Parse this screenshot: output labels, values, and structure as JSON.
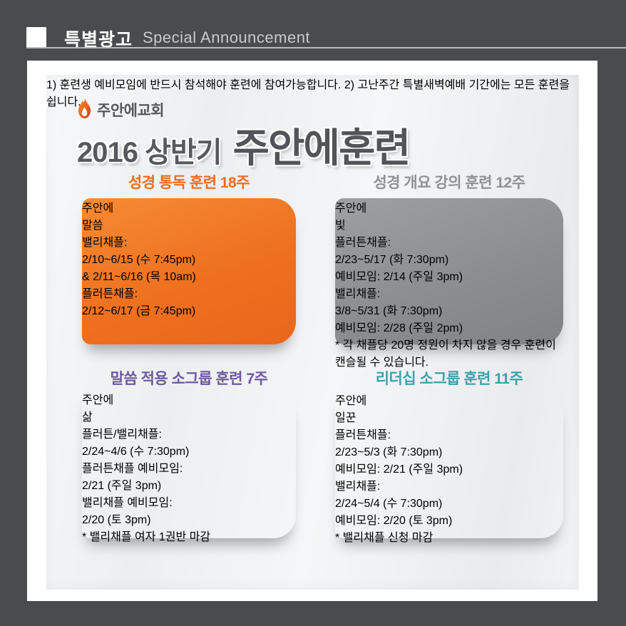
{
  "header": {
    "title_ko": "특별광고",
    "title_en": "Special Announcement"
  },
  "logo": {
    "church_name": "주안에교회",
    "icon": "flame-icon"
  },
  "title": {
    "prefix": "2016 상반기",
    "main": "주안에훈련"
  },
  "colors": {
    "frame": "#4a4b4d",
    "orange_accent": "#ee6c1f",
    "gray_accent": "#8f9293",
    "purple_accent": "#6d58a1",
    "teal_accent": "#3aa2ab",
    "label_navy": "#26335c",
    "note_yellow": "#e6eb66",
    "footnote_red": "#e8501f"
  },
  "poster": {
    "panels": [
      {
        "name": "word",
        "header": "성경 통독 훈련 18주",
        "tab": {
          "top": "주안에",
          "main": "말씀"
        },
        "lines": [
          {
            "style": "label",
            "text": "밸리채플:"
          },
          {
            "style": "value",
            "text": "2/10~6/15 (수 7:45pm)"
          },
          {
            "style": "value",
            "text": "& 2/11~6/16 (목 10am)"
          },
          {
            "style": "label gap",
            "text": "플러튼채플:"
          },
          {
            "style": "value",
            "text": "2/12~6/17 (금 7:45pm)"
          }
        ],
        "note": ""
      },
      {
        "name": "light",
        "header": "성경 개요 강의 훈련 12주",
        "tab": {
          "top": "주안에",
          "main": "빛"
        },
        "lines": [
          {
            "style": "label",
            "text": "플러튼채플:"
          },
          {
            "style": "value",
            "text": "2/23~5/17 (화 7:30pm)"
          },
          {
            "style": "value",
            "text": "예비모임: 2/14 (주일 3pm)"
          },
          {
            "style": "label gap",
            "text": "밸리채플:"
          },
          {
            "style": "value",
            "text": "3/8~5/31 (화 7:30pm)"
          },
          {
            "style": "value",
            "text": "예비모임: 2/28 (주일 2pm)"
          }
        ],
        "note": "* 각 채플당 20명 정원이\n차지 않을 경우 훈련이\n캔슬될 수 있습니다."
      },
      {
        "name": "life",
        "header": "말씀 적용 소그룹 훈련 7주",
        "tab": {
          "top": "주안에",
          "main": "삶"
        },
        "lines": [
          {
            "style": "label",
            "text": "플러튼/밸리채플:"
          },
          {
            "style": "value",
            "text": "2/24~4/6 (수 7:30pm)"
          },
          {
            "style": "wlabel gap",
            "text": "플러튼채플 예비모임:"
          },
          {
            "style": "value",
            "text": "2/21 (주일 3pm)"
          },
          {
            "style": "wlabel gap-sm",
            "text": "밸리채플 예비모임:"
          },
          {
            "style": "value",
            "text": "2/20 (토 3pm)"
          }
        ],
        "note": "* 밸리채플 여자 1권반 마감"
      },
      {
        "name": "worker",
        "header": "리더십 소그룹 훈련 11주",
        "tab": {
          "top": "주안에",
          "main": "일꾼"
        },
        "lines": [
          {
            "style": "label",
            "text": "플러튼채플:"
          },
          {
            "style": "value",
            "text": "2/23~5/3 (화 7:30pm)"
          },
          {
            "style": "value",
            "text": "예비모임: 2/21 (주일 3pm)"
          },
          {
            "style": "label gap",
            "text": "밸리채플:"
          },
          {
            "style": "value",
            "text": "2/24~5/4 (수 7:30pm)"
          },
          {
            "style": "value",
            "text": "예비모임: 2/20 (토 3pm)"
          }
        ],
        "note": "* 밸리채플 신청 마감"
      }
    ]
  },
  "footnotes": [
    "1) 훈련생 예비모임에 반드시 참석해야 훈련에 참여가능합니다.",
    "2) 고난주간 특별새벽예배 기간에는 모든 훈련을 쉽니다."
  ]
}
